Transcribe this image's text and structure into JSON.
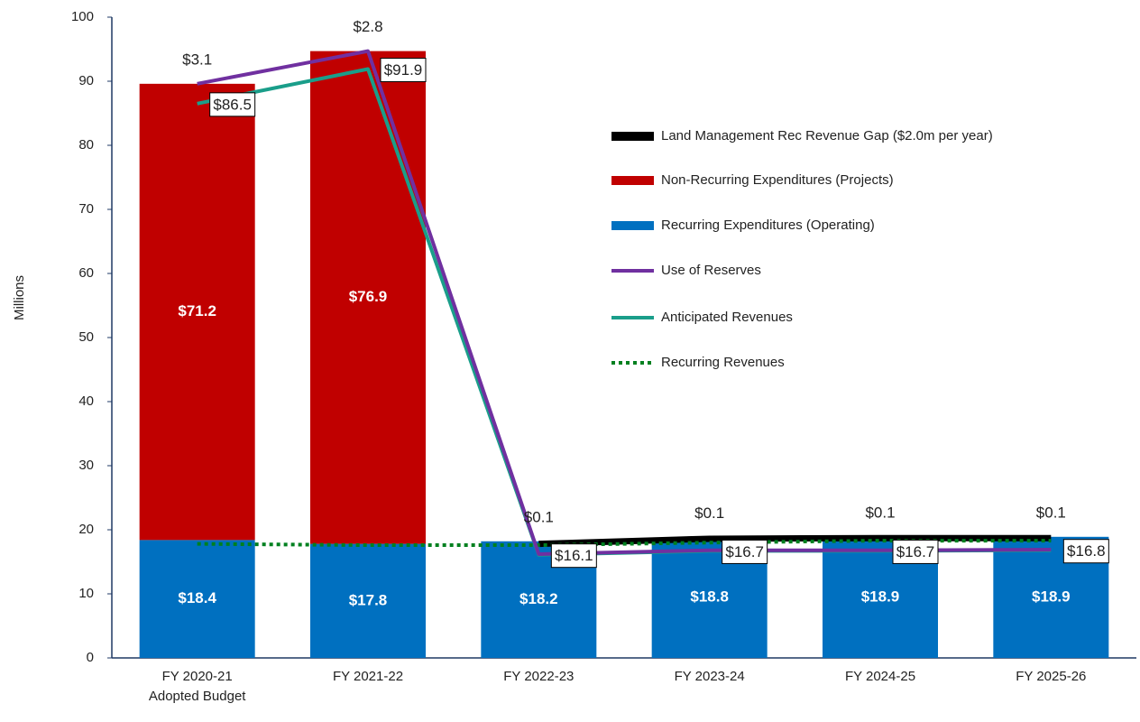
{
  "chart_data": {
    "type": "combo",
    "y_label": "Millions",
    "categories": [
      "FY 2020-21\nAdopted Budget",
      "FY 2021-22",
      "FY 2022-23",
      "FY 2023-24",
      "FY 2024-25",
      "FY 2025-26"
    ],
    "ylim": [
      0,
      100
    ],
    "yticks": [
      0,
      10,
      20,
      30,
      40,
      50,
      60,
      70,
      80,
      90,
      100
    ],
    "series": [
      {
        "name": "Land Management Rec Revenue Gap ($2.0m per year)",
        "kind": "thick-line",
        "color": "#000000",
        "values": [
          null,
          null,
          17.8,
          18.6,
          18.7,
          18.7
        ]
      },
      {
        "name": "Non-Recurring Expenditures (Projects)",
        "kind": "bar",
        "color": "#c00000",
        "values": [
          71.2,
          76.9,
          null,
          null,
          null,
          null
        ],
        "value_labels": [
          "$71.2",
          "$76.9",
          null,
          null,
          null,
          null
        ]
      },
      {
        "name": "Recurring Expenditures (Operating)",
        "kind": "bar",
        "color": "#0070c0",
        "values": [
          18.4,
          17.8,
          18.2,
          18.8,
          18.9,
          18.9
        ],
        "value_labels": [
          "$18.4",
          "$17.8",
          "$18.2",
          "$18.8",
          "$18.9",
          "$18.9"
        ]
      },
      {
        "name": "Use of Reserves",
        "kind": "line",
        "color": "#7030a0",
        "values": [
          89.6,
          94.7,
          16.2,
          16.8,
          16.8,
          16.9
        ],
        "amounts": [
          3.1,
          2.8,
          0.1,
          0.1,
          0.1,
          0.1
        ],
        "amount_labels": [
          "$3.1",
          "$2.8",
          "$0.1",
          "$0.1",
          "$0.1",
          "$0.1"
        ]
      },
      {
        "name": "Anticipated Revenues",
        "kind": "line",
        "color": "#1a9e8a",
        "values": [
          86.5,
          91.9,
          16.1,
          16.7,
          16.7,
          16.8
        ],
        "value_labels": [
          "$86.5",
          "$91.9",
          "$16.1",
          "$16.7",
          "$16.7",
          "$16.8"
        ]
      },
      {
        "name": "Recurring Revenues",
        "kind": "dotted-line",
        "color": "#00801f",
        "values": [
          17.8,
          17.6,
          17.6,
          18.0,
          18.3,
          18.3
        ]
      }
    ]
  }
}
